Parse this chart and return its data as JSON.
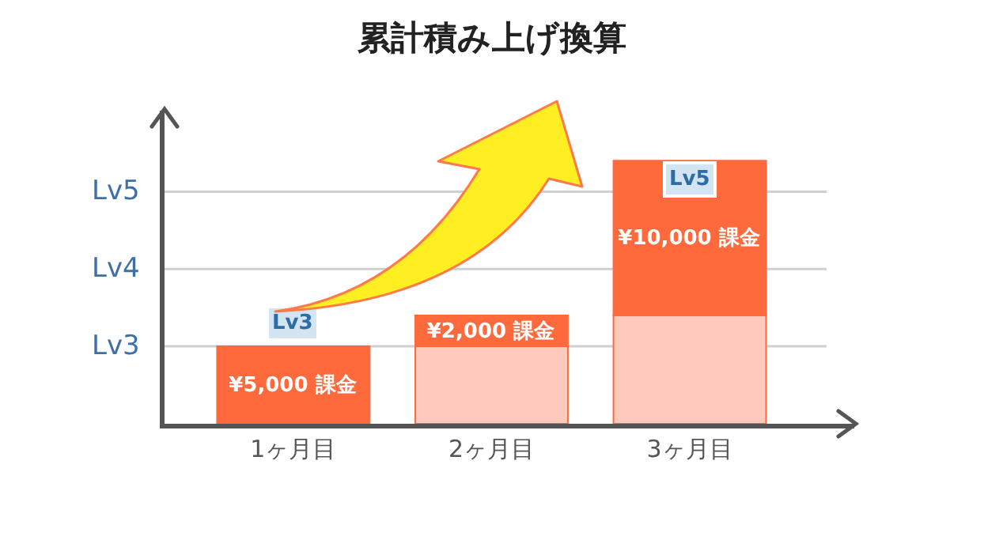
{
  "chart_data": {
    "type": "bar",
    "title": "累計積み上げ換算",
    "categories": [
      "1ヶ月目",
      "2ヶ月目",
      "3ヶ月目"
    ],
    "stacked": true,
    "series": [
      {
        "color": "#ffc9bd",
        "values": [
          null,
          5000,
          7000
        ]
      },
      {
        "color": "#ff6a3d",
        "values": [
          5000,
          2000,
          10000
        ],
        "value_labels": [
          "¥5,000 課金",
          "¥2,000 課金",
          "¥10,000 課金"
        ]
      }
    ],
    "ref_lines": [
      {
        "axis": "y",
        "value": 5000,
        "label": "Lv3",
        "color": "#d0d0d0"
      },
      {
        "axis": "y",
        "value": 10000,
        "label": "Lv4",
        "color": "#d0d0d0"
      },
      {
        "axis": "y",
        "value": 15000,
        "label": "Lv5",
        "color": "#d0d0d0"
      }
    ],
    "annotations": [
      "Lv3",
      "Lv5"
    ]
  }
}
